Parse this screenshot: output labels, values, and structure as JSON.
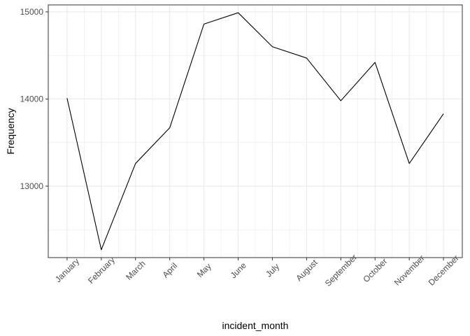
{
  "chart_data": {
    "type": "line",
    "xlabel": "incident_month",
    "ylabel": "Frequency",
    "categories": [
      "January",
      "February",
      "March",
      "April",
      "May",
      "June",
      "July",
      "August",
      "September",
      "October",
      "November",
      "December"
    ],
    "series": [
      {
        "values": [
          14010,
          12270,
          13260,
          13670,
          14860,
          14990,
          14600,
          14470,
          13980,
          14420,
          13260,
          13830
        ]
      }
    ],
    "ylim": [
      12180,
      15080
    ],
    "yticks": [
      13000,
      14000,
      15000
    ],
    "yticks_minor": [
      12500,
      13500,
      14500
    ],
    "grid": true,
    "legend": "none",
    "line_color": "#000000",
    "grid_color": "#ebebeb",
    "panel_border_color": "#333333"
  }
}
